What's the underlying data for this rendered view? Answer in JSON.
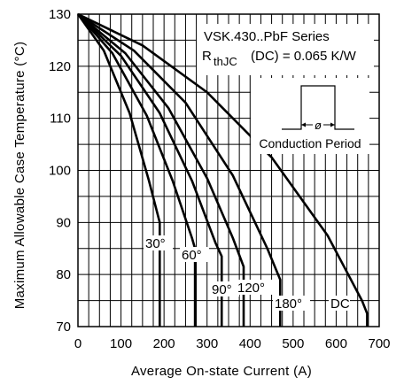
{
  "chart_data": {
    "type": "line",
    "title": "",
    "xlabel": "Average On-state Current (A)",
    "ylabel": "Maximum Allowable Case Temperature (°C)",
    "xlim": [
      0,
      700
    ],
    "ylim": [
      70,
      130
    ],
    "xticks": [
      0,
      100,
      200,
      300,
      400,
      500,
      600,
      700
    ],
    "yticks": [
      70,
      80,
      90,
      100,
      110,
      120,
      130
    ],
    "grid": true,
    "annotation": {
      "series_title": "VSK.430..PbF Series",
      "rthjc_prefix": "R",
      "rthjc_sub": "thJC",
      "rthjc_rest": "(DC) = 0.065 K/W",
      "inset_label": "Conduction Period",
      "inset_symbol": "ø"
    },
    "series": [
      {
        "name": "30°",
        "x": [
          0,
          60,
          120,
          165,
          190,
          190
        ],
        "y": [
          130,
          123,
          111,
          98,
          90,
          70
        ]
      },
      {
        "name": "60°",
        "x": [
          0,
          80,
          160,
          220,
          265,
          272,
          272
        ],
        "y": [
          130,
          122.5,
          110.5,
          98,
          87,
          85,
          70
        ]
      },
      {
        "name": "90°",
        "x": [
          0,
          100,
          190,
          265,
          320,
          334,
          334
        ],
        "y": [
          130,
          122,
          111,
          98,
          86,
          83.5,
          70
        ]
      },
      {
        "name": "120°",
        "x": [
          0,
          110,
          210,
          300,
          360,
          385,
          385
        ],
        "y": [
          130,
          122.5,
          112,
          98.5,
          87,
          81.5,
          70
        ]
      },
      {
        "name": "180°",
        "x": [
          0,
          130,
          250,
          360,
          440,
          470,
          470
        ],
        "y": [
          130,
          123,
          113,
          99,
          85,
          79,
          70
        ]
      },
      {
        "name": "DC",
        "x": [
          0,
          150,
          300,
          450,
          580,
          660,
          672,
          672
        ],
        "y": [
          130,
          124,
          115,
          102.5,
          87.5,
          75,
          72.5,
          70
        ]
      }
    ]
  }
}
